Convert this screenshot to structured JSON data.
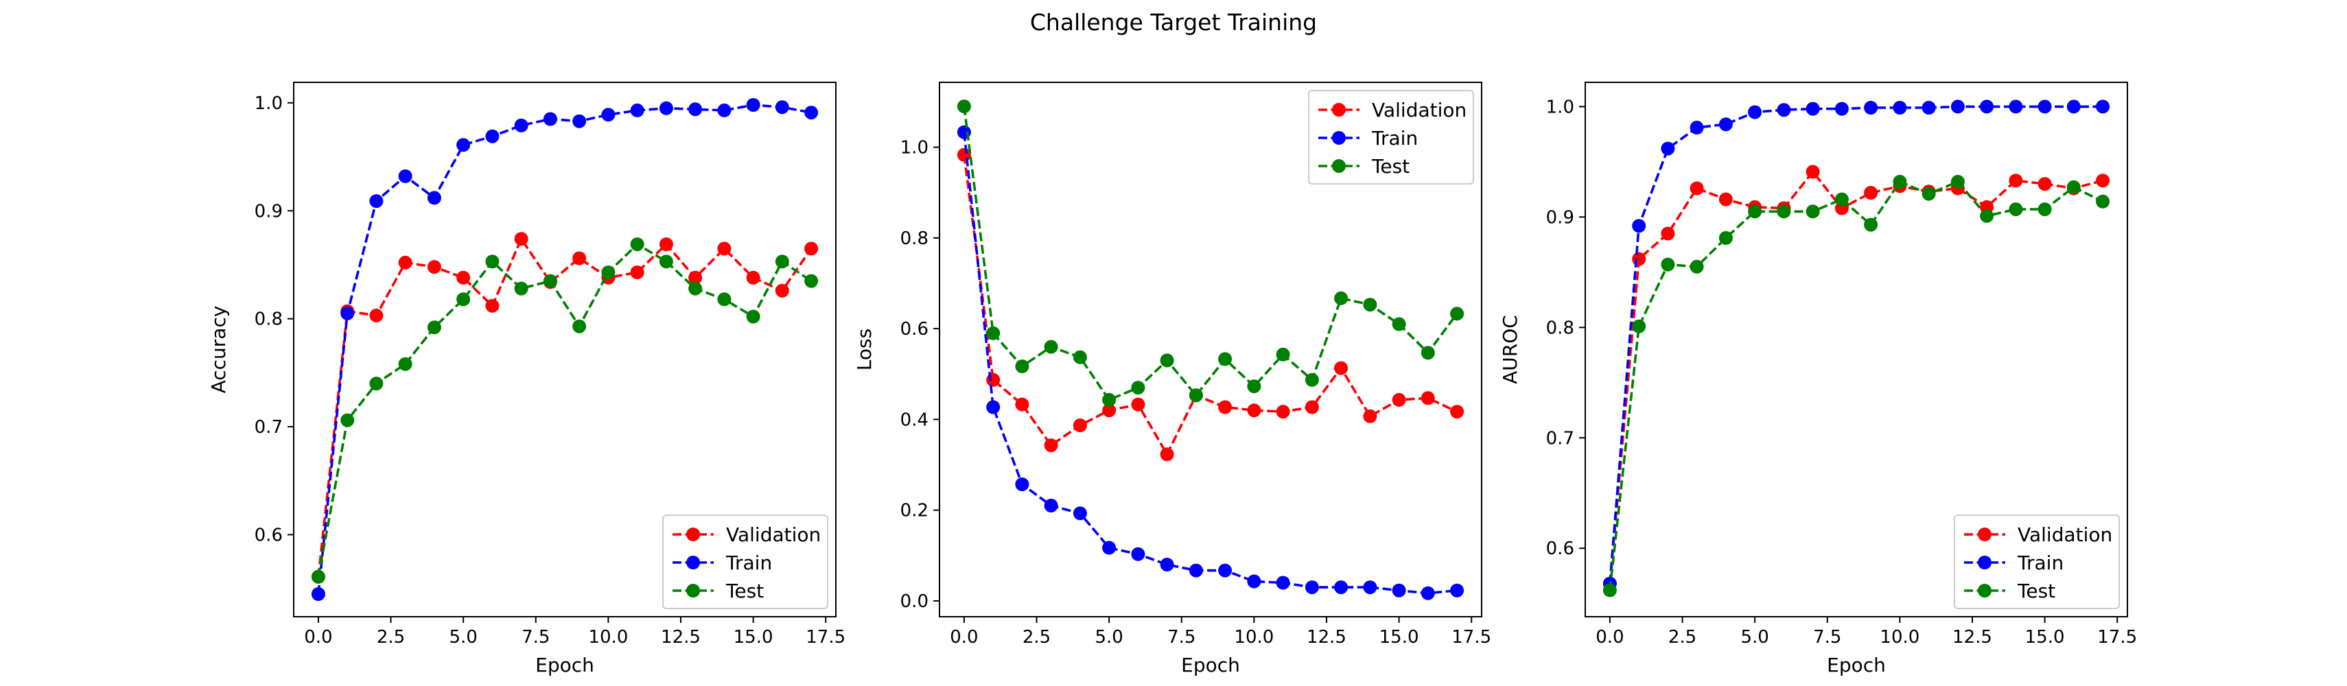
{
  "figure": {
    "title": "Challenge Target Training"
  },
  "colors": {
    "Validation": "#ff0000",
    "Train": "#0000ff",
    "Test": "#008000",
    "axis": "#000000"
  },
  "chart_data": [
    {
      "type": "line",
      "title": "",
      "xlabel": "Epoch",
      "ylabel": "Accuracy",
      "xlim": [
        -0.85,
        17.85
      ],
      "ylim": [
        0.524,
        1.019
      ],
      "xticks": [
        0.0,
        2.5,
        5.0,
        7.5,
        10.0,
        12.5,
        15.0,
        17.5
      ],
      "xtick_labels": [
        "0.0",
        "2.5",
        "5.0",
        "7.5",
        "10.0",
        "12.5",
        "15.0",
        "17.5"
      ],
      "yticks": [
        0.6,
        0.7,
        0.8,
        0.9,
        1.0
      ],
      "ytick_labels": [
        "0.6",
        "0.7",
        "0.8",
        "0.9",
        "1.0"
      ],
      "legend_position": "lower-right",
      "x": [
        0,
        1,
        2,
        3,
        4,
        5,
        6,
        7,
        8,
        9,
        10,
        11,
        12,
        13,
        14,
        15,
        16,
        17
      ],
      "series": [
        {
          "name": "Validation",
          "color": "#ff0000",
          "linestyle": "dashed",
          "marker": "circle",
          "values": [
            0.561,
            0.807,
            0.803,
            0.852,
            0.848,
            0.838,
            0.812,
            0.874,
            0.834,
            0.856,
            0.838,
            0.843,
            0.869,
            0.838,
            0.865,
            0.838,
            0.826,
            0.865
          ]
        },
        {
          "name": "Train",
          "color": "#0000ff",
          "linestyle": "dashed",
          "marker": "circle",
          "values": [
            0.545,
            0.805,
            0.909,
            0.932,
            0.912,
            0.961,
            0.969,
            0.979,
            0.985,
            0.983,
            0.989,
            0.993,
            0.995,
            0.994,
            0.993,
            0.998,
            0.996,
            0.991
          ]
        },
        {
          "name": "Test",
          "color": "#008000",
          "linestyle": "dashed",
          "marker": "circle",
          "values": [
            0.561,
            0.706,
            0.74,
            0.758,
            0.792,
            0.818,
            0.853,
            0.828,
            0.835,
            0.793,
            0.843,
            0.869,
            0.853,
            0.828,
            0.818,
            0.802,
            0.853,
            0.835
          ]
        }
      ]
    },
    {
      "type": "line",
      "title": "",
      "xlabel": "Epoch",
      "ylabel": "Loss",
      "xlim": [
        -0.85,
        17.85
      ],
      "ylim": [
        -0.0349,
        1.143
      ],
      "xticks": [
        0.0,
        2.5,
        5.0,
        7.5,
        10.0,
        12.5,
        15.0,
        17.5
      ],
      "xtick_labels": [
        "0.0",
        "2.5",
        "5.0",
        "7.5",
        "10.0",
        "12.5",
        "15.0",
        "17.5"
      ],
      "yticks": [
        0.0,
        0.2,
        0.4,
        0.6,
        0.8,
        1.0
      ],
      "ytick_labels": [
        "0.0",
        "0.2",
        "0.4",
        "0.6",
        "0.8",
        "1.0"
      ],
      "legend_position": "upper-right",
      "x": [
        0,
        1,
        2,
        3,
        4,
        5,
        6,
        7,
        8,
        9,
        10,
        11,
        12,
        13,
        14,
        15,
        16,
        17
      ],
      "series": [
        {
          "name": "Validation",
          "color": "#ff0000",
          "linestyle": "dashed",
          "marker": "circle",
          "values": [
            0.983,
            0.487,
            0.433,
            0.343,
            0.387,
            0.42,
            0.433,
            0.323,
            0.453,
            0.427,
            0.42,
            0.417,
            0.427,
            0.513,
            0.407,
            0.443,
            0.447,
            0.417
          ]
        },
        {
          "name": "Train",
          "color": "#0000ff",
          "linestyle": "dashed",
          "marker": "circle",
          "values": [
            1.033,
            0.427,
            0.257,
            0.21,
            0.193,
            0.117,
            0.103,
            0.08,
            0.067,
            0.067,
            0.043,
            0.04,
            0.03,
            0.03,
            0.03,
            0.023,
            0.017,
            0.023
          ]
        },
        {
          "name": "Test",
          "color": "#008000",
          "linestyle": "dashed",
          "marker": "circle",
          "values": [
            1.09,
            0.59,
            0.517,
            0.56,
            0.537,
            0.443,
            0.47,
            0.53,
            0.453,
            0.533,
            0.473,
            0.543,
            0.487,
            0.667,
            0.653,
            0.61,
            0.547,
            0.633
          ]
        }
      ]
    },
    {
      "type": "line",
      "title": "",
      "xlabel": "Epoch",
      "ylabel": "AUROC",
      "xlim": [
        -0.85,
        17.85
      ],
      "ylim": [
        0.538,
        1.022
      ],
      "xticks": [
        0.0,
        2.5,
        5.0,
        7.5,
        10.0,
        12.5,
        15.0,
        17.5
      ],
      "xtick_labels": [
        "0.0",
        "2.5",
        "5.0",
        "7.5",
        "10.0",
        "12.5",
        "15.0",
        "17.5"
      ],
      "yticks": [
        0.6,
        0.7,
        0.8,
        0.9,
        1.0
      ],
      "ytick_labels": [
        "0.6",
        "0.7",
        "0.8",
        "0.9",
        "1.0"
      ],
      "legend_position": "lower-right",
      "x": [
        0,
        1,
        2,
        3,
        4,
        5,
        6,
        7,
        8,
        9,
        10,
        11,
        12,
        13,
        14,
        15,
        16,
        17
      ],
      "series": [
        {
          "name": "Validation",
          "color": "#ff0000",
          "linestyle": "dashed",
          "marker": "circle",
          "values": [
            0.568,
            0.862,
            0.885,
            0.926,
            0.916,
            0.909,
            0.908,
            0.941,
            0.908,
            0.922,
            0.928,
            0.923,
            0.926,
            0.909,
            0.933,
            0.93,
            0.926,
            0.933
          ]
        },
        {
          "name": "Train",
          "color": "#0000ff",
          "linestyle": "dashed",
          "marker": "circle",
          "values": [
            0.568,
            0.892,
            0.962,
            0.981,
            0.984,
            0.995,
            0.997,
            0.998,
            0.998,
            0.999,
            0.999,
            0.999,
            1.0,
            1.0,
            1.0,
            1.0,
            1.0,
            1.0
          ]
        },
        {
          "name": "Test",
          "color": "#008000",
          "linestyle": "dashed",
          "marker": "circle",
          "values": [
            0.562,
            0.801,
            0.857,
            0.855,
            0.881,
            0.905,
            0.905,
            0.905,
            0.916,
            0.893,
            0.932,
            0.921,
            0.932,
            0.901,
            0.907,
            0.907,
            0.927,
            0.914
          ]
        }
      ]
    }
  ]
}
